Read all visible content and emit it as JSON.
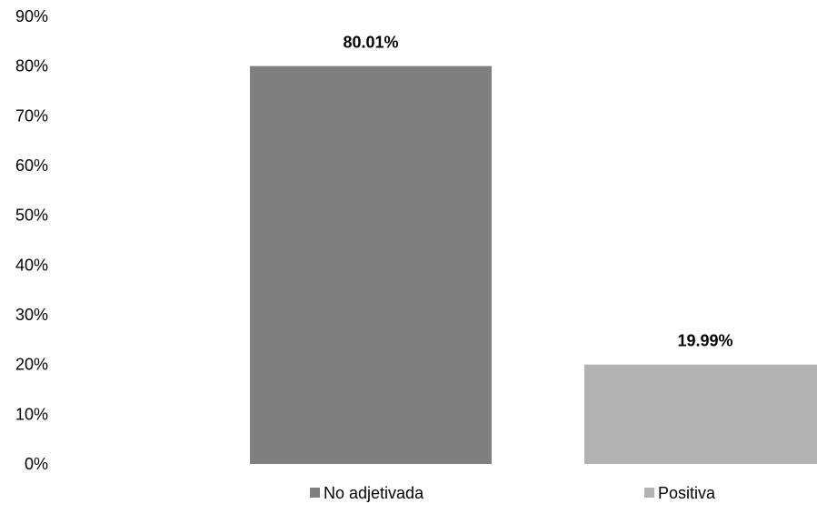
{
  "chart_data": {
    "type": "bar",
    "title": "",
    "xlabel": "",
    "ylabel": "",
    "ylim": [
      0,
      90
    ],
    "yticks": [
      0,
      10,
      20,
      30,
      40,
      50,
      60,
      70,
      80,
      90
    ],
    "ytick_labels": [
      "0%",
      "10%",
      "20%",
      "30%",
      "40%",
      "50%",
      "60%",
      "70%",
      "80%",
      "90%"
    ],
    "grid": false,
    "legend_position": "bottom",
    "categories": [
      "No adjetivada",
      "Positiva"
    ],
    "values": [
      80.01,
      19.99
    ],
    "data_labels": [
      "80.01%",
      "19.99%"
    ],
    "colors": [
      "#7f7f7f",
      "#b2b2b2"
    ]
  }
}
